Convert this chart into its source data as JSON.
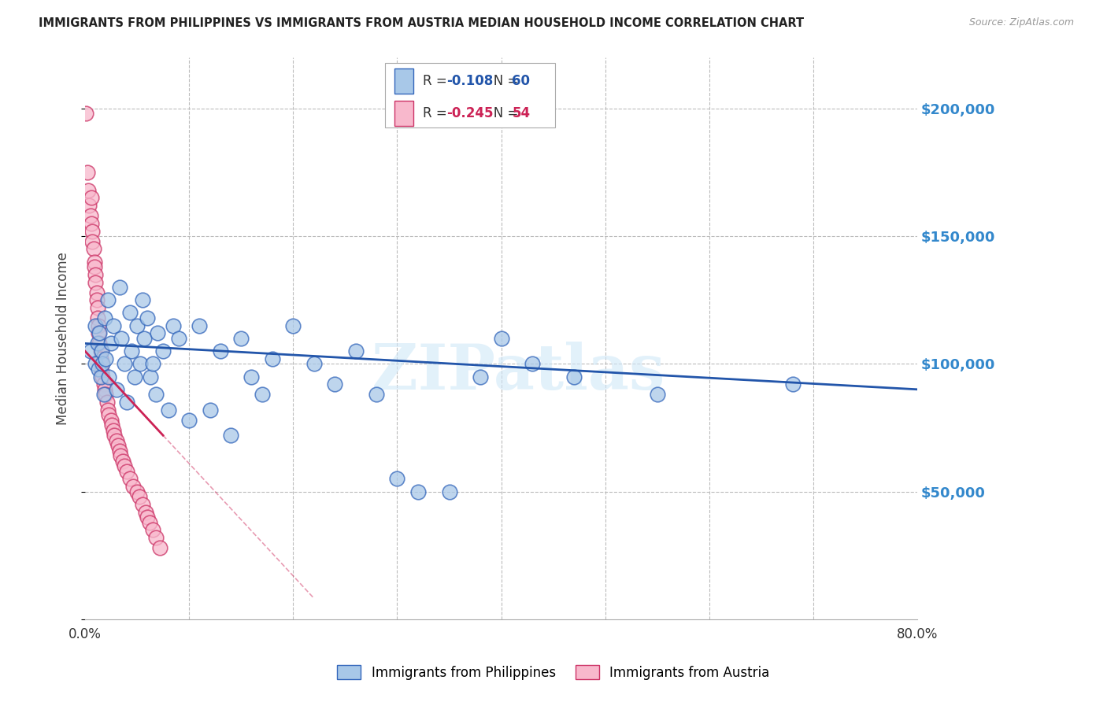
{
  "title": "IMMIGRANTS FROM PHILIPPINES VS IMMIGRANTS FROM AUSTRIA MEDIAN HOUSEHOLD INCOME CORRELATION CHART",
  "source": "Source: ZipAtlas.com",
  "ylabel": "Median Household Income",
  "xlim": [
    0.0,
    0.8
  ],
  "ylim": [
    0,
    220000
  ],
  "yticks": [
    0,
    50000,
    100000,
    150000,
    200000
  ],
  "ytick_labels": [
    "",
    "$50,000",
    "$100,000",
    "$150,000",
    "$200,000"
  ],
  "background_color": "#ffffff",
  "grid_color": "#bbbbbb",
  "philippines_color": "#a8c8e8",
  "philippines_edge_color": "#3366bb",
  "philippines_line_color": "#2255aa",
  "austria_color": "#f8b8cc",
  "austria_edge_color": "#cc3366",
  "austria_line_color": "#cc2255",
  "watermark": "ZIPatlas",
  "legend_philippines_r": "-0.108",
  "legend_philippines_n": "60",
  "legend_austria_r": "-0.245",
  "legend_austria_n": "54",
  "philippines_x": [
    0.005,
    0.01,
    0.01,
    0.012,
    0.013,
    0.014,
    0.015,
    0.016,
    0.017,
    0.018,
    0.019,
    0.02,
    0.022,
    0.023,
    0.025,
    0.027,
    0.03,
    0.033,
    0.035,
    0.038,
    0.04,
    0.043,
    0.045,
    0.048,
    0.05,
    0.053,
    0.055,
    0.057,
    0.06,
    0.063,
    0.065,
    0.068,
    0.07,
    0.075,
    0.08,
    0.085,
    0.09,
    0.1,
    0.11,
    0.12,
    0.13,
    0.14,
    0.15,
    0.16,
    0.17,
    0.18,
    0.2,
    0.22,
    0.24,
    0.26,
    0.28,
    0.3,
    0.32,
    0.35,
    0.38,
    0.4,
    0.43,
    0.47,
    0.55,
    0.68
  ],
  "philippines_y": [
    105000,
    100000,
    115000,
    108000,
    98000,
    112000,
    95000,
    105000,
    100000,
    88000,
    118000,
    102000,
    125000,
    95000,
    108000,
    115000,
    90000,
    130000,
    110000,
    100000,
    85000,
    120000,
    105000,
    95000,
    115000,
    100000,
    125000,
    110000,
    118000,
    95000,
    100000,
    88000,
    112000,
    105000,
    82000,
    115000,
    110000,
    78000,
    115000,
    82000,
    105000,
    72000,
    110000,
    95000,
    88000,
    102000,
    115000,
    100000,
    92000,
    105000,
    88000,
    55000,
    50000,
    50000,
    95000,
    110000,
    100000,
    95000,
    88000,
    92000
  ],
  "austria_x": [
    0.001,
    0.002,
    0.003,
    0.004,
    0.005,
    0.006,
    0.006,
    0.007,
    0.007,
    0.008,
    0.009,
    0.009,
    0.01,
    0.01,
    0.011,
    0.011,
    0.012,
    0.012,
    0.013,
    0.013,
    0.014,
    0.015,
    0.015,
    0.016,
    0.016,
    0.017,
    0.018,
    0.019,
    0.02,
    0.021,
    0.022,
    0.023,
    0.025,
    0.026,
    0.027,
    0.028,
    0.03,
    0.032,
    0.033,
    0.034,
    0.036,
    0.038,
    0.04,
    0.043,
    0.046,
    0.05,
    0.052,
    0.055,
    0.058,
    0.06,
    0.062,
    0.065,
    0.068,
    0.072
  ],
  "austria_y": [
    198000,
    175000,
    168000,
    162000,
    158000,
    165000,
    155000,
    152000,
    148000,
    145000,
    140000,
    138000,
    135000,
    132000,
    128000,
    125000,
    122000,
    118000,
    115000,
    112000,
    108000,
    105000,
    102000,
    100000,
    97000,
    95000,
    92000,
    90000,
    88000,
    85000,
    82000,
    80000,
    78000,
    76000,
    74000,
    72000,
    70000,
    68000,
    66000,
    64000,
    62000,
    60000,
    58000,
    55000,
    52000,
    50000,
    48000,
    45000,
    42000,
    40000,
    38000,
    35000,
    32000,
    28000
  ]
}
